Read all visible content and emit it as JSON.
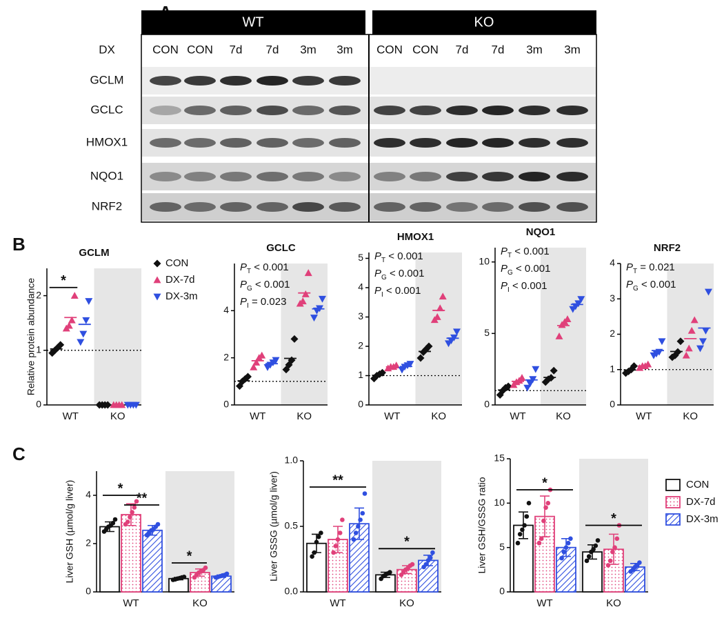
{
  "panel_labels": [
    "A",
    "B",
    "C"
  ],
  "blot": {
    "groups": [
      "WT",
      "KO"
    ],
    "treatment_label": "DX",
    "lanes": [
      "CON",
      "CON",
      "7d",
      "7d",
      "3m",
      "3m",
      "CON",
      "CON",
      "7d",
      "7d",
      "3m",
      "3m"
    ],
    "proteins": [
      "GCLM",
      "GCLC",
      "HMOX1",
      "NQO1",
      "NRF2"
    ]
  },
  "chart_data": [
    {
      "type": "dot",
      "title": "GCLM",
      "ylabel": "Relative protein abundance",
      "categories": [
        "WT",
        "KO"
      ],
      "ylim": [
        0,
        2.5
      ],
      "yticks": [
        0,
        1,
        2
      ],
      "reference_line": 1,
      "shaded": "KO",
      "legend": true,
      "series": [
        {
          "name": "CON",
          "color": "#111111",
          "marker": "diamond",
          "values": [
            [
              0.95,
              1.0,
              1.05,
              1.1
            ],
            [
              0,
              0,
              0,
              0
            ]
          ]
        },
        {
          "name": "DX-7d",
          "color": "#e0407a",
          "marker": "triangle",
          "values": [
            [
              1.4,
              1.45,
              1.55,
              2.0
            ],
            [
              0,
              0,
              0,
              0
            ]
          ]
        },
        {
          "name": "DX-3m",
          "color": "#2f4fe0",
          "marker": "triangle-down",
          "values": [
            [
              1.15,
              1.3,
              1.55,
              1.9
            ],
            [
              0,
              0,
              0,
              0
            ]
          ]
        }
      ],
      "significance": [
        {
          "label": "*",
          "category": 0,
          "from": 0,
          "to": 1,
          "y": 2.15
        }
      ]
    },
    {
      "type": "dot",
      "title": "GCLC",
      "categories": [
        "WT",
        "KO"
      ],
      "ylim": [
        0,
        6
      ],
      "yticks": [
        0,
        2,
        4
      ],
      "reference_line": 1,
      "shaded": "KO",
      "series": [
        {
          "color": "#111111",
          "marker": "diamond",
          "values": [
            [
              0.8,
              1.0,
              1.1,
              1.2
            ],
            [
              1.5,
              1.7,
              1.9,
              2.8
            ]
          ]
        },
        {
          "color": "#e0407a",
          "marker": "triangle",
          "values": [
            [
              1.6,
              1.8,
              2.0,
              2.1
            ],
            [
              4.3,
              4.4,
              4.7,
              5.6
            ]
          ]
        },
        {
          "color": "#2f4fe0",
          "marker": "triangle-down",
          "values": [
            [
              1.6,
              1.7,
              1.8,
              1.9
            ],
            [
              3.7,
              4.0,
              4.1,
              4.5
            ]
          ]
        }
      ],
      "stats": [
        {
          "p": "P",
          "sub": "T",
          "rest": " < 0.001"
        },
        {
          "p": "P",
          "sub": "G",
          "rest": " < 0.001"
        },
        {
          "p": "P",
          "sub": "I",
          "rest": " = 0.023"
        }
      ]
    },
    {
      "type": "dot",
      "title": "HMOX1",
      "categories": [
        "WT",
        "KO"
      ],
      "ylim": [
        0,
        5.2
      ],
      "yticks": [
        0,
        1,
        2,
        3,
        4,
        5
      ],
      "reference_line": 1,
      "shaded": "KO",
      "series": [
        {
          "color": "#111111",
          "marker": "diamond",
          "values": [
            [
              0.9,
              1.0,
              1.05,
              1.1
            ],
            [
              1.6,
              1.8,
              1.9,
              2.0
            ]
          ]
        },
        {
          "color": "#e0407a",
          "marker": "triangle",
          "values": [
            [
              1.25,
              1.3,
              1.3,
              1.35
            ],
            [
              2.9,
              3.0,
              3.3,
              3.7
            ]
          ]
        },
        {
          "color": "#2f4fe0",
          "marker": "triangle-down",
          "values": [
            [
              1.2,
              1.3,
              1.35,
              1.4
            ],
            [
              2.1,
              2.2,
              2.3,
              2.5
            ]
          ]
        }
      ],
      "stats": [
        {
          "p": "P",
          "sub": "T",
          "rest": " < 0.001"
        },
        {
          "p": "P",
          "sub": "G",
          "rest": " < 0.001"
        },
        {
          "p": "P",
          "sub": "I",
          "rest": " < 0.001"
        }
      ]
    },
    {
      "type": "dot",
      "title": "NQO1",
      "categories": [
        "WT",
        "KO"
      ],
      "ylim": [
        0,
        11
      ],
      "yticks": [
        0,
        5,
        10
      ],
      "reference_line": 1,
      "shaded": "KO",
      "series": [
        {
          "color": "#111111",
          "marker": "diamond",
          "values": [
            [
              0.7,
              1.0,
              1.2,
              1.3
            ],
            [
              1.6,
              1.8,
              1.9,
              2.4
            ]
          ]
        },
        {
          "color": "#e0407a",
          "marker": "triangle",
          "values": [
            [
              1.4,
              1.6,
              1.7,
              1.9
            ],
            [
              4.8,
              5.6,
              5.8,
              6.0
            ]
          ]
        },
        {
          "color": "#2f4fe0",
          "marker": "triangle-down",
          "values": [
            [
              1.2,
              1.5,
              1.8,
              2.5
            ],
            [
              6.7,
              6.9,
              7.1,
              7.4
            ]
          ]
        }
      ],
      "stats": [
        {
          "p": "P",
          "sub": "T",
          "rest": " < 0.001"
        },
        {
          "p": "P",
          "sub": "G",
          "rest": " < 0.001"
        },
        {
          "p": "P",
          "sub": "I",
          "rest": " < 0.001"
        }
      ]
    },
    {
      "type": "dot",
      "title": "NRF2",
      "categories": [
        "WT",
        "KO"
      ],
      "ylim": [
        0,
        4
      ],
      "yticks": [
        0,
        1,
        2,
        3,
        4
      ],
      "reference_line": 1,
      "shaded": "KO",
      "series": [
        {
          "color": "#111111",
          "marker": "diamond",
          "values": [
            [
              0.9,
              0.95,
              1.0,
              1.1
            ],
            [
              1.35,
              1.4,
              1.5,
              1.8
            ]
          ]
        },
        {
          "color": "#e0407a",
          "marker": "triangle",
          "values": [
            [
              1.05,
              1.1,
              1.1,
              1.15
            ],
            [
              1.4,
              1.6,
              2.1,
              2.4
            ]
          ]
        },
        {
          "color": "#2f4fe0",
          "marker": "triangle-down",
          "values": [
            [
              1.4,
              1.45,
              1.5,
              1.8
            ],
            [
              1.6,
              1.8,
              2.1,
              3.2
            ]
          ]
        }
      ],
      "stats": [
        {
          "p": "P",
          "sub": "T",
          "rest": " = 0.021"
        },
        {
          "p": "P",
          "sub": "G",
          "rest": " < 0.001"
        }
      ]
    },
    {
      "type": "bar",
      "ylabel": "Liver GSH (µmol/g liver)",
      "categories": [
        "WT",
        "KO"
      ],
      "ylim": [
        0,
        5
      ],
      "yticks": [
        0,
        2,
        4
      ],
      "shaded": "KO",
      "series": [
        {
          "color": "#111111",
          "fill": "none",
          "values": [
            2.7,
            0.55
          ],
          "errors": [
            0.2,
            0.05
          ],
          "points": [
            [
              2.5,
              2.6,
              2.7,
              2.75,
              2.85,
              3.0
            ],
            [
              0.5,
              0.52,
              0.55,
              0.57,
              0.6,
              0.62
            ]
          ]
        },
        {
          "color": "#e0407a",
          "fill": "dots",
          "values": [
            3.2,
            0.8
          ],
          "errors": [
            0.45,
            0.15
          ],
          "points": [
            [
              2.8,
              2.9,
              3.1,
              3.3,
              3.5,
              3.75
            ],
            [
              0.6,
              0.7,
              0.8,
              0.85,
              0.9,
              1.0
            ]
          ]
        },
        {
          "color": "#2f4fe0",
          "fill": "hatch",
          "values": [
            2.55,
            0.65
          ],
          "errors": [
            0.2,
            0.05
          ],
          "points": [
            [
              2.35,
              2.45,
              2.55,
              2.6,
              2.7,
              2.8
            ],
            [
              0.6,
              0.62,
              0.65,
              0.68,
              0.7,
              0.75
            ]
          ]
        }
      ],
      "significance": [
        {
          "label": "*",
          "category": 0,
          "from": 0,
          "to": 1,
          "y": 4.0
        },
        {
          "label": "**",
          "category": 0,
          "from": 1,
          "to": 2,
          "y": 3.6
        },
        {
          "label": "*",
          "category": 1,
          "from": 0,
          "to": 1,
          "y": 1.2
        }
      ]
    },
    {
      "type": "bar",
      "ylabel": "Liver GSSG (µmol/g liver)",
      "categories": [
        "WT",
        "KO"
      ],
      "ylim": [
        0,
        1
      ],
      "yticks": [
        {
          "value": 0,
          "label": "0.0"
        },
        0.5,
        {
          "value": 1,
          "label": "1.0"
        }
      ],
      "shaded": "KO",
      "series": [
        {
          "color": "#111111",
          "fill": "none",
          "values": [
            0.37,
            0.13
          ],
          "errors": [
            0.07,
            0.02
          ],
          "points": [
            [
              0.27,
              0.3,
              0.38,
              0.42,
              0.45
            ],
            [
              0.1,
              0.12,
              0.13,
              0.14,
              0.15
            ]
          ]
        },
        {
          "color": "#e0407a",
          "fill": "dots",
          "values": [
            0.4,
            0.17
          ],
          "errors": [
            0.1,
            0.03
          ],
          "points": [
            [
              0.3,
              0.35,
              0.4,
              0.45,
              0.55
            ],
            [
              0.13,
              0.15,
              0.17,
              0.18,
              0.2,
              0.21
            ]
          ]
        },
        {
          "color": "#2f4fe0",
          "fill": "hatch",
          "values": [
            0.52,
            0.24
          ],
          "errors": [
            0.12,
            0.04
          ],
          "points": [
            [
              0.4,
              0.45,
              0.5,
              0.55,
              0.6,
              0.75
            ],
            [
              0.19,
              0.21,
              0.24,
              0.26,
              0.3
            ]
          ]
        }
      ],
      "significance": [
        {
          "label": "**",
          "category": 0,
          "from": 0,
          "to": 2,
          "y": 0.8
        },
        {
          "label": "*",
          "category": 1,
          "from": 0,
          "to": 2,
          "y": 0.33
        }
      ]
    },
    {
      "type": "bar",
      "ylabel": "Liver GSH/GSSG ratio",
      "categories": [
        "WT",
        "KO"
      ],
      "ylim": [
        0,
        15
      ],
      "yticks": [
        0,
        5,
        10,
        15
      ],
      "shaded": "KO",
      "legend": true,
      "series": [
        {
          "name": "CON",
          "color": "#111111",
          "fill": "none",
          "values": [
            7.5,
            4.5
          ],
          "errors": [
            1.5,
            0.8
          ],
          "points": [
            [
              5.5,
              6.5,
              7.0,
              7.5,
              8.5,
              10.0
            ],
            [
              3.5,
              4.0,
              4.5,
              4.8,
              5.2,
              5.8
            ]
          ]
        },
        {
          "name": "DX-7d",
          "color": "#e0407a",
          "fill": "dots",
          "values": [
            8.5,
            4.8
          ],
          "errors": [
            2.3,
            1.7
          ],
          "points": [
            [
              5.5,
              6.0,
              8.0,
              9.5,
              10.0,
              11.5
            ],
            [
              3.0,
              3.5,
              4.5,
              5.0,
              6.0,
              7.5
            ]
          ]
        },
        {
          "name": "DX-3m",
          "color": "#2f4fe0",
          "fill": "hatch",
          "values": [
            5.0,
            2.8
          ],
          "errors": [
            1.0,
            0.4
          ],
          "points": [
            [
              3.8,
              4.5,
              5.0,
              5.5,
              6.0
            ],
            [
              2.3,
              2.5,
              2.8,
              3.0,
              3.3
            ]
          ]
        }
      ],
      "significance": [
        {
          "label": "*",
          "category": 0,
          "from": 0,
          "to": 2,
          "y": 11.5
        },
        {
          "label": "*",
          "category": 1,
          "from": 0,
          "to": 2,
          "y": 7.5
        }
      ]
    }
  ]
}
